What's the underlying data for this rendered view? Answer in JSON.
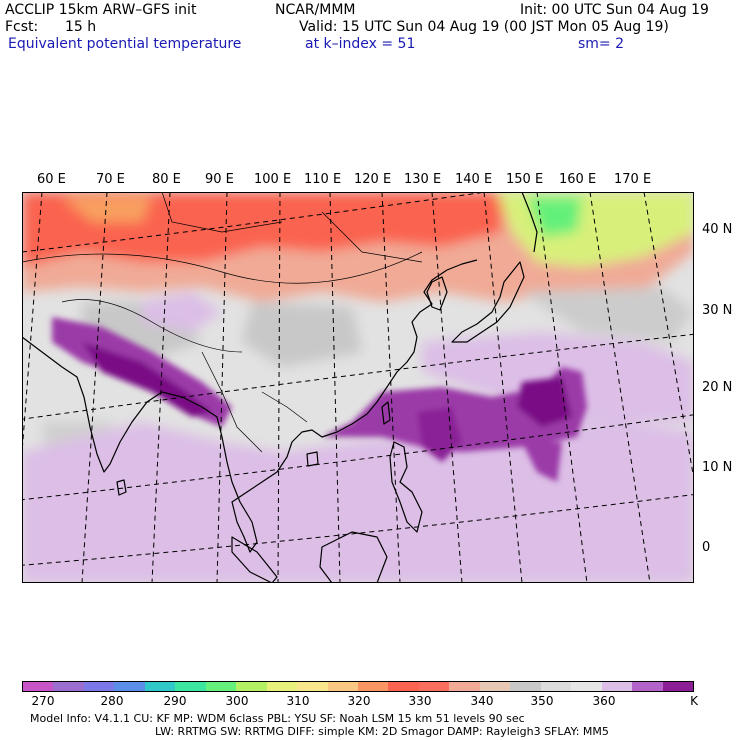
{
  "header": {
    "model": "ACCLIP 15km ARW–GFS init",
    "org": "NCAR/MMM",
    "init": "Init: 00 UTC Sun 04 Aug 19",
    "fcst_label": "Fcst:",
    "fcst_value": "15 h",
    "valid": "Valid: 15 UTC Sun 04 Aug 19 (00 JST Mon 05 Aug 19)",
    "field": "Equivalent potential temperature",
    "level": "at k–index =  51",
    "smoothing": "sm= 2"
  },
  "map": {
    "lon_labels": [
      "60 E",
      "70 E",
      "80 E",
      "90 E",
      "100 E",
      "110 E",
      "120 E",
      "130 E",
      "140 E",
      "150 E",
      "160 E",
      "170 E"
    ],
    "lat_labels": [
      "40 N",
      "30 N",
      "20 N",
      "10 N",
      "0"
    ]
  },
  "colorbar": {
    "unit": "K",
    "labels": [
      "270",
      "280",
      "290",
      "300",
      "310",
      "320",
      "330",
      "340",
      "350",
      "360"
    ],
    "colors": [
      "#c855c8",
      "#9b6ed0",
      "#7b78e8",
      "#5a8ee8",
      "#30c8c8",
      "#3ce6a0",
      "#64f07a",
      "#b4f064",
      "#e6f07a",
      "#f8e68c",
      "#fac882",
      "#fa9664",
      "#fa6450",
      "#fa6e60",
      "#f0aa96",
      "#e6c8b4",
      "#c8c8c8",
      "#dcdcdc",
      "#e6e6e6",
      "#dcbee6",
      "#b464c8",
      "#8c1e96"
    ]
  },
  "footer": {
    "line1": "Model Info: V4.1.1     CU: KF       MP: WDM 6class   PBL: YSU        SF: Noah LSM     15 km    51 levels   90 sec",
    "line2": "LW: RRTMG    SW: RRTMG   DIFF: simple KM: 2D Smagor DAMP: Rayleigh3   SFLAY: MM5"
  },
  "palette": {
    "header_blue": "#1a1ab4",
    "land_outline": "#000000",
    "gridline": "#000000"
  }
}
